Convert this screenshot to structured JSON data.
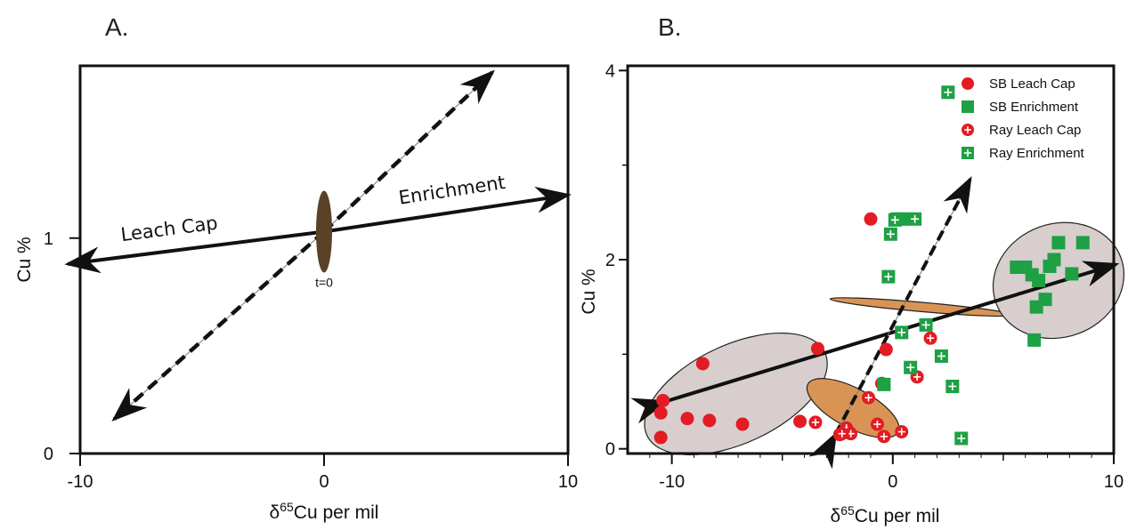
{
  "chart_data": [
    {
      "panel_label": "A.",
      "type": "line",
      "xlabel": "δ65Cu per mil",
      "ylabel": "Cu %",
      "xlim": [
        -10,
        10
      ],
      "ylim": [
        0,
        1.8
      ],
      "xticks": [
        "-10",
        "0",
        "10"
      ],
      "yticks": [
        "0",
        "1"
      ],
      "origin": {
        "x": 0,
        "y": 1.03,
        "label": "t=0"
      },
      "trends": [
        {
          "label": "Leach Cap",
          "from": [
            0,
            1.03
          ],
          "to": [
            -10.5,
            0.88
          ],
          "style": "solid"
        },
        {
          "label": "Enrichment",
          "from": [
            0,
            1.03
          ],
          "to": [
            10,
            1.2
          ],
          "style": "solid"
        },
        {
          "label": "",
          "from": [
            0,
            1.03
          ],
          "to": [
            6.9,
            1.77
          ],
          "style": "dashed"
        },
        {
          "label": "",
          "from": [
            0,
            1.03
          ],
          "to": [
            -8.6,
            0.16
          ],
          "style": "dashed"
        }
      ]
    },
    {
      "panel_label": "B.",
      "type": "scatter",
      "xlabel": "δ65Cu per mil",
      "ylabel": "Cu %",
      "xlim": [
        -12,
        10
      ],
      "ylim": [
        -0.05,
        4.05
      ],
      "xticks": [
        -10,
        0,
        10
      ],
      "yticks": [
        0,
        2,
        4
      ],
      "legend_position": "top-right",
      "colors": {
        "red": "#e31b23",
        "green": "#1ea044"
      },
      "series": [
        {
          "name": "SB Leach Cap",
          "marker": "circle",
          "color": "#e31b23",
          "points": [
            [
              -10.4,
              0.51
            ],
            [
              -10.5,
              0.38
            ],
            [
              -10.5,
              0.12
            ],
            [
              -9.3,
              0.32
            ],
            [
              -8.6,
              0.9
            ],
            [
              -8.3,
              0.3
            ],
            [
              -6.8,
              0.26
            ],
            [
              -4.2,
              0.29
            ],
            [
              -3.4,
              1.06
            ],
            [
              -1.0,
              2.43
            ],
            [
              -0.5,
              0.69
            ],
            [
              -0.3,
              1.05
            ]
          ]
        },
        {
          "name": "SB Enrichment",
          "marker": "square",
          "color": "#1ea044",
          "points": [
            [
              -0.4,
              0.68
            ],
            [
              5.6,
              1.92
            ],
            [
              6.0,
              1.92
            ],
            [
              6.3,
              1.84
            ],
            [
              6.6,
              1.78
            ],
            [
              7.1,
              1.93
            ],
            [
              7.3,
              2.0
            ],
            [
              7.5,
              2.18
            ],
            [
              8.1,
              1.85
            ],
            [
              8.6,
              2.18
            ],
            [
              6.9,
              1.58
            ],
            [
              6.5,
              1.5
            ],
            [
              6.4,
              1.15
            ],
            [
              0.2,
              2.43
            ],
            [
              0.5,
              2.43
            ]
          ]
        },
        {
          "name": "Ray Leach Cap",
          "marker": "circle-cross",
          "color": "#e31b23",
          "points": [
            [
              -3.5,
              0.28
            ],
            [
              -2.4,
              0.15
            ],
            [
              -2.1,
              0.22
            ],
            [
              -1.9,
              0.16
            ],
            [
              -2.3,
              0.16
            ],
            [
              -1.1,
              0.54
            ],
            [
              -0.7,
              0.26
            ],
            [
              -0.4,
              0.13
            ],
            [
              0.4,
              0.18
            ],
            [
              1.1,
              0.76
            ],
            [
              1.7,
              1.17
            ]
          ]
        },
        {
          "name": "Ray Enrichment",
          "marker": "square-cross",
          "color": "#1ea044",
          "points": [
            [
              2.5,
              3.77
            ],
            [
              -0.1,
              2.27
            ],
            [
              0.1,
              2.42
            ],
            [
              1.0,
              2.43
            ],
            [
              -0.2,
              1.82
            ],
            [
              0.4,
              1.23
            ],
            [
              1.5,
              1.31
            ],
            [
              0.8,
              0.86
            ],
            [
              2.2,
              0.98
            ],
            [
              2.7,
              0.66
            ],
            [
              3.1,
              0.11
            ]
          ]
        }
      ],
      "trends": [
        {
          "from": [
            -10.3,
            0.5
          ],
          "to": [
            10.1,
            1.95
          ],
          "style": "solid"
        },
        {
          "from": [
            -2.6,
            0.15
          ],
          "to": [
            3.5,
            2.85
          ],
          "style": "dashed"
        }
      ],
      "fields": [
        {
          "cx": -7.1,
          "cy": 0.58,
          "rx": 4.9,
          "ry": 0.52,
          "angle": -25,
          "color": "#d8cece"
        },
        {
          "cx": -1.8,
          "cy": 0.43,
          "rx": 1.9,
          "ry": 0.54,
          "angle": -62,
          "color": "#d99455"
        },
        {
          "cx": 1.3,
          "cy": 1.5,
          "rx": 2.4,
          "ry": 0.97,
          "angle": -85,
          "color": "#d99455"
        },
        {
          "cx": 7.5,
          "cy": 1.78,
          "rx": 3.2,
          "ry": 0.6,
          "angle": -20,
          "color": "#d8cece"
        }
      ]
    }
  ]
}
